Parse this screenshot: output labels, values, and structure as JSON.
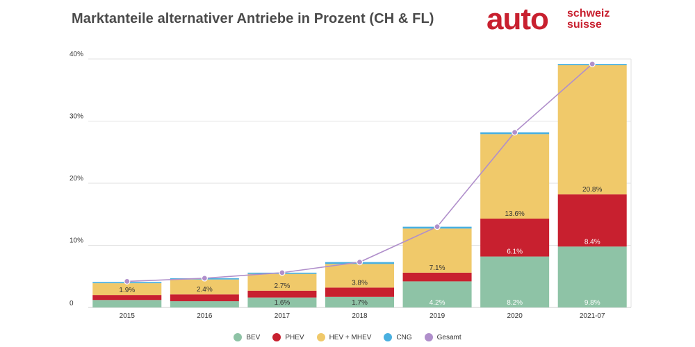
{
  "header": {
    "title": "Marktanteile alternativer Antriebe in Prozent (CH & FL)",
    "logo_main": "auto",
    "logo_line1": "schweiz",
    "logo_line2": "suisse"
  },
  "colors": {
    "BEV": "#8ec3a6",
    "PHEV": "#c8202f",
    "HEV_MHEV": "#f0c96a",
    "CNG": "#4ab0e0",
    "Gesamt": "#b08fcb",
    "grid": "#e2e2e2",
    "text": "#333333"
  },
  "chart_data": {
    "type": "bar",
    "stacked": true,
    "title": "Marktanteile alternativer Antriebe in Prozent (CH & FL)",
    "categories": [
      "2015",
      "2016",
      "2017",
      "2018",
      "2019",
      "2020",
      "2021-07"
    ],
    "ylim": [
      0,
      40
    ],
    "yticks": [
      {
        "value": 0,
        "label": "0"
      },
      {
        "value": 10,
        "label": "10%"
      },
      {
        "value": 20,
        "label": "20%"
      },
      {
        "value": 30,
        "label": "30%"
      },
      {
        "value": 40,
        "label": "40%"
      }
    ],
    "series": [
      {
        "name": "BEV",
        "key": "BEV",
        "values": [
          1.2,
          1.0,
          1.6,
          1.7,
          4.2,
          8.2,
          9.8
        ],
        "labels": [
          null,
          null,
          "1.6%",
          "1.7%",
          "4.2%",
          "8.2%",
          "9.8%"
        ]
      },
      {
        "name": "PHEV",
        "key": "PHEV",
        "values": [
          0.8,
          1.1,
          1.1,
          1.5,
          1.4,
          6.1,
          8.4
        ],
        "labels": [
          null,
          null,
          null,
          null,
          null,
          "6.1%",
          "8.4%"
        ]
      },
      {
        "name": "HEV + MHEV",
        "key": "HEV_MHEV",
        "values": [
          1.9,
          2.4,
          2.7,
          3.8,
          7.1,
          13.6,
          20.8
        ],
        "labels": [
          "1.9%",
          "2.4%",
          "2.7%",
          "3.8%",
          "7.1%",
          "13.6%",
          "20.8%"
        ]
      },
      {
        "name": "CNG",
        "key": "CNG",
        "values": [
          0.2,
          0.2,
          0.2,
          0.3,
          0.3,
          0.3,
          0.2
        ],
        "labels": [
          null,
          null,
          null,
          null,
          null,
          null,
          null
        ]
      }
    ],
    "line": {
      "name": "Gesamt",
      "key": "Gesamt",
      "values": [
        4.2,
        4.7,
        5.6,
        7.3,
        13.0,
        28.2,
        39.2
      ]
    },
    "legend": [
      {
        "name": "BEV",
        "key": "BEV"
      },
      {
        "name": "PHEV",
        "key": "PHEV"
      },
      {
        "name": "HEV + MHEV",
        "key": "HEV_MHEV"
      },
      {
        "name": "CNG",
        "key": "CNG"
      },
      {
        "name": "Gesamt",
        "key": "Gesamt"
      }
    ],
    "legend_position": "bottom-center"
  }
}
